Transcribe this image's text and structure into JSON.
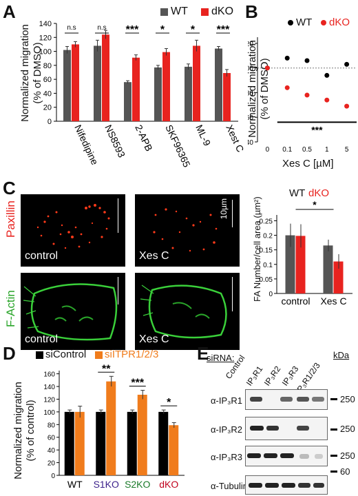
{
  "panels": {
    "A": {
      "letter": "A",
      "ylabel_1": "Normalized migration",
      "ylabel_2": "(% of DMSO)",
      "legend": [
        {
          "label": "WT",
          "color": "#555555"
        },
        {
          "label": "dKO",
          "color": "#e8231f"
        }
      ]
    },
    "B": {
      "letter": "B",
      "ylabel_1": "Normalized migration",
      "ylabel_2": "(% of DMSO)",
      "xlabel": "Xes C [µM]",
      "significance": "***",
      "legend": [
        {
          "label": "WT",
          "color": "#000000"
        },
        {
          "label": "dKO",
          "color": "#e8231f"
        }
      ]
    },
    "C": {
      "letter": "C",
      "stain_1": "Paxillin",
      "stain_2": "F-Actin",
      "captions": [
        "control",
        "Xes C",
        "control",
        "Xes C"
      ],
      "scalebar": "10µm",
      "ylabel": "FA Number/cell area (µm²)",
      "legend": [
        {
          "label": "WT",
          "color": "#000000"
        },
        {
          "label": "dKO",
          "color": "#e8231f"
        }
      ]
    },
    "D": {
      "letter": "D",
      "ylabel_1": "Normalized migration",
      "ylabel_2": "(% of control)",
      "legend": [
        {
          "label": "siControl",
          "color": "#000000"
        },
        {
          "label": "siITPR1/2/3",
          "color": "#f07c1c"
        }
      ]
    },
    "E": {
      "letter": "E",
      "sirna_label": "siRNA:",
      "lanes": [
        "Control",
        "IP₃R1",
        "IP₃R2",
        "IP₃R3",
        "IP₃R1/2/3"
      ],
      "kda": "kDa",
      "rows": [
        {
          "label": "α-IP₃R1",
          "marker": "250"
        },
        {
          "label": "α-IP₃R2",
          "marker": "250"
        },
        {
          "label": "α-IP₃R3",
          "marker": "250"
        },
        {
          "label": "α-Tubulin",
          "marker": "60"
        }
      ]
    }
  },
  "chart_data": [
    {
      "panel": "A",
      "type": "bar",
      "categories": [
        "Nifedipine",
        "NS8593",
        "2-APB",
        "SKF96365",
        "ML-9",
        "Xest C"
      ],
      "series": [
        {
          "name": "WT",
          "values": [
            102,
            108,
            56,
            77,
            78,
            104
          ],
          "errors": [
            5,
            8,
            2,
            3,
            4,
            3
          ]
        },
        {
          "name": "dKO",
          "values": [
            110,
            124,
            91,
            99,
            108,
            69
          ],
          "errors": [
            4,
            6,
            4,
            5,
            8,
            5
          ]
        }
      ],
      "significance": [
        "n.s",
        "n.s",
        "***",
        "*",
        "*",
        "***"
      ],
      "yticks": [
        0,
        20,
        40,
        60,
        80,
        100,
        120,
        140
      ],
      "ylim": [
        0,
        140
      ]
    },
    {
      "panel": "B",
      "type": "scatter",
      "categories": [
        "0",
        "0.1",
        "0.5",
        "1",
        "5"
      ],
      "series": [
        {
          "name": "WT",
          "values": [
            100,
            108,
            106,
            94,
            103
          ]
        },
        {
          "name": "dKO",
          "values": [
            100,
            84,
            78,
            74,
            69
          ]
        }
      ],
      "yticks": [
        40,
        60,
        80,
        100,
        120
      ],
      "ylim": [
        40,
        125
      ],
      "reference_line": 100
    },
    {
      "panel": "C",
      "type": "bar",
      "categories": [
        "control",
        "Xes C"
      ],
      "series": [
        {
          "name": "WT",
          "values": [
            0.2,
            0.165
          ],
          "errors": [
            0.04,
            0.02
          ]
        },
        {
          "name": "dKO",
          "values": [
            0.198,
            0.11
          ],
          "errors": [
            0.04,
            0.025
          ]
        }
      ],
      "significance": "*",
      "yticks": [
        0,
        0.05,
        0.1,
        0.15,
        0.2,
        0.25
      ],
      "ylim": [
        0,
        0.27
      ]
    },
    {
      "panel": "D",
      "type": "bar",
      "categories": [
        "WT",
        "S1KO",
        "S2KO",
        "dKO"
      ],
      "category_colors": [
        "#000000",
        "#3a1f8a",
        "#1a7a2a",
        "#c0001c"
      ],
      "series": [
        {
          "name": "siControl",
          "values": [
            100,
            100,
            100,
            100
          ],
          "errors": [
            3,
            3,
            3,
            3
          ]
        },
        {
          "name": "siITPR1/2/3",
          "values": [
            100,
            148,
            127,
            79
          ],
          "errors": [
            9,
            8,
            7,
            4
          ]
        }
      ],
      "significance": [
        "",
        "**",
        "***",
        "*"
      ],
      "yticks": [
        0,
        20,
        40,
        60,
        80,
        100,
        120,
        140,
        160
      ],
      "ylim": [
        0,
        165
      ]
    }
  ]
}
